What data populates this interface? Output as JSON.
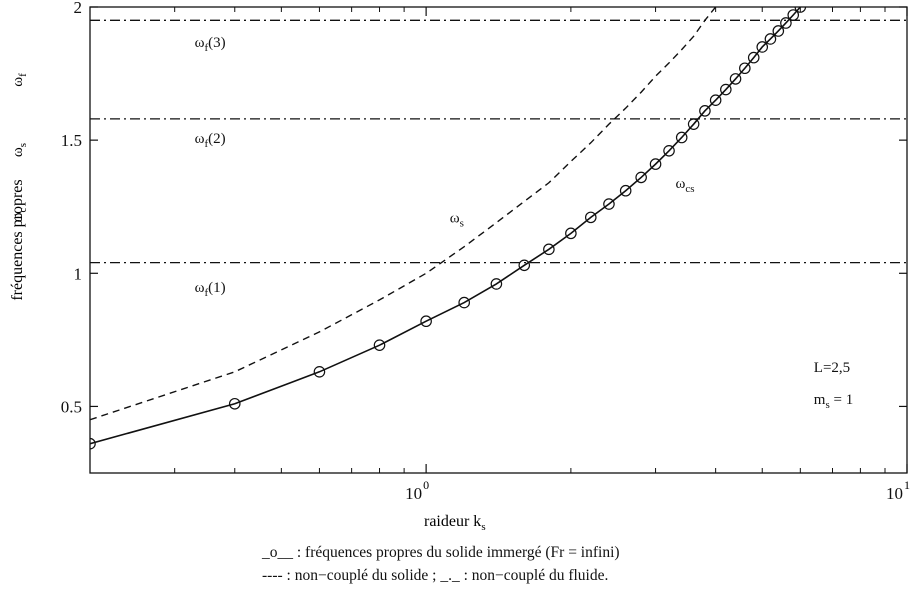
{
  "chart_data": {
    "type": "line",
    "xscale": "log",
    "xlim": [
      0.2,
      10
    ],
    "ylim": [
      0.25,
      2.0
    ],
    "grid": false,
    "xlabel": "raideur k",
    "xlabel_sub": "s",
    "ylabel": "fréquences propres",
    "ylabel_symbols": [
      {
        "text": "ω",
        "sub": "c"
      },
      {
        "text": "ω",
        "sub": "s"
      },
      {
        "text": "ω",
        "sub": "f"
      }
    ],
    "xticks": [
      {
        "value": 1,
        "base": "10",
        "exp": "0"
      },
      {
        "value": 10,
        "base": "10",
        "exp": "1"
      }
    ],
    "yticks": [
      {
        "value": 0.5,
        "label": "0.5"
      },
      {
        "value": 1,
        "label": "1"
      },
      {
        "value": 1.5,
        "label": "1.5"
      },
      {
        "value": 2,
        "label": "2"
      }
    ],
    "series": [
      {
        "name": "ω_cs",
        "label": "ω",
        "label_sub": "cs",
        "style": "solid-circles",
        "label_at": [
          3.3,
          1.32
        ],
        "x": [
          0.2,
          0.4,
          0.6,
          0.8,
          1.0,
          1.2,
          1.4,
          1.6,
          1.8,
          2.0,
          2.2,
          2.4,
          2.6,
          2.8,
          3.0,
          3.2,
          3.4,
          3.6,
          3.8,
          4.0,
          4.2,
          4.4,
          4.6,
          4.8,
          5.0,
          5.2,
          5.4,
          5.6,
          5.8,
          6.0
        ],
        "y": [
          0.36,
          0.51,
          0.63,
          0.73,
          0.82,
          0.89,
          0.96,
          1.03,
          1.09,
          1.15,
          1.21,
          1.26,
          1.31,
          1.36,
          1.41,
          1.46,
          1.51,
          1.56,
          1.61,
          1.65,
          1.69,
          1.73,
          1.77,
          1.81,
          1.85,
          1.88,
          1.91,
          1.94,
          1.97,
          2.0
        ]
      },
      {
        "name": "ω_s",
        "label": "ω",
        "label_sub": "s",
        "style": "dashed",
        "label_at": [
          1.12,
          1.19
        ],
        "x": [
          0.2,
          0.4,
          0.6,
          0.8,
          1.0,
          1.2,
          1.4,
          1.6,
          1.8,
          2.0,
          2.2,
          2.4,
          2.6,
          2.8,
          3.0,
          3.2,
          3.4,
          3.6,
          3.8,
          4.0
        ],
        "y": [
          0.45,
          0.63,
          0.78,
          0.9,
          1.0,
          1.1,
          1.19,
          1.27,
          1.34,
          1.42,
          1.49,
          1.56,
          1.62,
          1.68,
          1.74,
          1.79,
          1.84,
          1.89,
          1.95,
          2.0
        ]
      },
      {
        "name": "ω_f(1)",
        "label": "ω",
        "label_sub": "f",
        "label_suffix": "(1)",
        "style": "dashdot",
        "label_at": [
          0.33,
          0.93
        ],
        "x": [
          0.2,
          10
        ],
        "y": [
          1.04,
          1.04
        ]
      },
      {
        "name": "ω_f(2)",
        "label": "ω",
        "label_sub": "f",
        "label_suffix": "(2)",
        "style": "dashdot",
        "label_at": [
          0.33,
          1.49
        ],
        "x": [
          0.2,
          10
        ],
        "y": [
          1.58,
          1.58
        ]
      },
      {
        "name": "ω_f(3)",
        "label": "ω",
        "label_sub": "f",
        "label_suffix": "(3)",
        "style": "dashdot",
        "label_at": [
          0.33,
          1.85
        ],
        "x": [
          0.2,
          10
        ],
        "y": [
          1.95,
          1.95
        ]
      }
    ],
    "annotations": [
      {
        "text": "L=2,5",
        "at": [
          6.4,
          0.63
        ]
      },
      {
        "text": "m",
        "sub": "s",
        "suffix": " = 1",
        "at": [
          6.4,
          0.51
        ]
      }
    ],
    "legend": [
      "_o__ : fréquences propres du solide immergé (Fr = infini)",
      "---- : non−couplé du solide ; _._ : non−couplé du fluide."
    ]
  }
}
